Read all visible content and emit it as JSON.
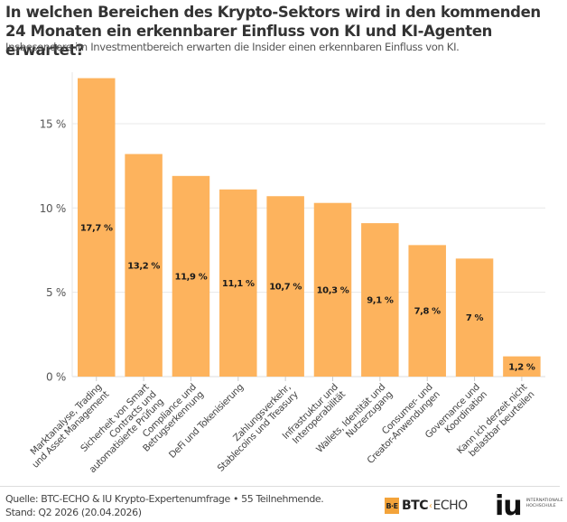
{
  "header": {
    "title": "In welchen Bereichen des Krypto-Sektors wird in den kommenden 24 Monaten ein erkennbarer Einfluss von KI und KI-Agenten erwartet?",
    "subtitle": "Insbesondere im Investmentbereich erwarten die Insider einen erkennbaren Einfluss von KI."
  },
  "chart_data": {
    "type": "bar",
    "title": "In welchen Bereichen des Krypto-Sektors wird in den kommenden 24 Monaten ein erkennbarer Einfluss von KI und KI-Agenten erwartet?",
    "subtitle": "Insbesondere im Investmentbereich erwarten die Insider einen erkennbaren Einfluss von KI.",
    "xlabel": "",
    "ylabel": "",
    "ylim": [
      0,
      18
    ],
    "yticks": [
      0,
      5,
      10,
      15
    ],
    "ytick_labels": [
      "0 %",
      "5 %",
      "10 %",
      "15 %"
    ],
    "grid": true,
    "bar_color": "#fdb35d",
    "categories": [
      [
        "Marktanalyse, Trading",
        "und Asset Management"
      ],
      [
        "Sicherheit von Smart",
        "Contracts und",
        "automatisierte Prüfung"
      ],
      [
        "Compliance und",
        "Betrugserkennung"
      ],
      [
        "DeFi und Tokenisierung"
      ],
      [
        "Zahlungsverkehr,",
        "Stablecoins und Treasury"
      ],
      [
        "Infrastruktur und",
        "Interoperabilität"
      ],
      [
        "Wallets, Identität und",
        "Nutzerzugang"
      ],
      [
        "Consumer- und",
        "Creator-Anwendungen"
      ],
      [
        "Governance und",
        "Koordination"
      ],
      [
        "Kann ich derzeit nicht",
        "belastbar beurteilen"
      ]
    ],
    "values": [
      17.7,
      13.2,
      11.9,
      11.1,
      10.7,
      10.3,
      9.1,
      7.8,
      7.0,
      1.2
    ],
    "value_labels": [
      "17,7 %",
      "13,2 %",
      "11,9 %",
      "11,1 %",
      "10,7 %",
      "10,3 %",
      "9,1 %",
      "7,8 %",
      "7 %",
      "1,2 %"
    ]
  },
  "footer": {
    "source_line1": "Quelle: BTC-ECHO & IU Krypto-Expertenumfrage • 55 Teilnehmende.",
    "source_line2": "Stand: Q2 2026 (20.04.2026)",
    "btc_logo": {
      "square": "B·E",
      "bold": "BTC",
      "arrow": "‹",
      "thin": "ECHO"
    },
    "iu_logo": {
      "mark": "iu",
      "line1": "INTERNATIONALE",
      "line2": "HOCHSCHULE"
    }
  }
}
